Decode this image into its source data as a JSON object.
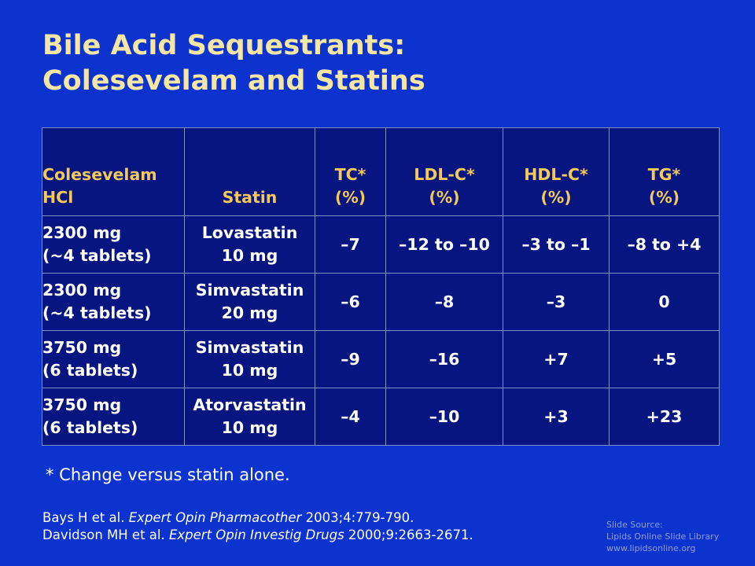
{
  "slide": {
    "title_line1": "Bile Acid Sequestrants:",
    "title_line2": "Colesevelam and Statins"
  },
  "table": {
    "headers": [
      [
        "Colesevelam",
        "HCl"
      ],
      [
        "Statin"
      ],
      [
        "TC*",
        "(%)"
      ],
      [
        "LDL-C*",
        "(%)"
      ],
      [
        "HDL-C*",
        "(%)"
      ],
      [
        "TG*",
        "(%)"
      ]
    ],
    "rows": [
      [
        [
          "2300 mg",
          "(~4 tablets)"
        ],
        [
          "Lovastatin",
          "10 mg"
        ],
        [
          "–7"
        ],
        [
          "–12 to –10"
        ],
        [
          "–3 to –1"
        ],
        [
          "–8 to +4"
        ]
      ],
      [
        [
          "2300 mg",
          "(~4 tablets)"
        ],
        [
          "Simvastatin",
          "20 mg"
        ],
        [
          "–6"
        ],
        [
          "–8"
        ],
        [
          "–3"
        ],
        [
          "0"
        ]
      ],
      [
        [
          "3750 mg",
          "(6 tablets)"
        ],
        [
          "Simvastatin",
          "10 mg"
        ],
        [
          "–9"
        ],
        [
          "–16"
        ],
        [
          "+7"
        ],
        [
          "+5"
        ]
      ],
      [
        [
          "3750 mg",
          "(6 tablets)"
        ],
        [
          "Atorvastatin",
          "10 mg"
        ],
        [
          "–4"
        ],
        [
          "–10"
        ],
        [
          "+3"
        ],
        [
          "+23"
        ]
      ]
    ]
  },
  "footnote": "* Change versus statin alone.",
  "references": [
    {
      "authors": "Bays H et al. ",
      "journal": "Expert Opin Pharmacother",
      "citation": " 2003;4:779-790."
    },
    {
      "authors": "Davidson MH et al. ",
      "journal": "Expert Opin Investig Drugs",
      "citation": " 2000;9:2663-2671."
    }
  ],
  "source": {
    "line1": "Slide Source:",
    "line2": "Lipids Online Slide Library",
    "line3": "www.lipidsonline.org"
  }
}
